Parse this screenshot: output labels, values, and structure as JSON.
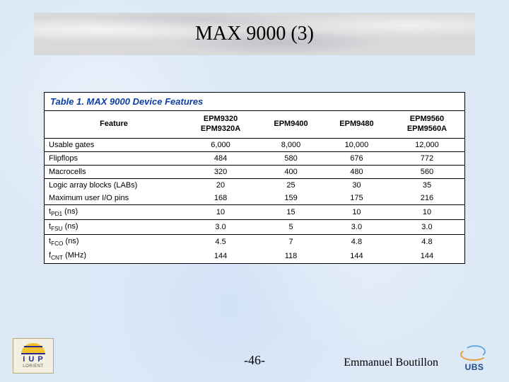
{
  "title": "MAX 9000 (3)",
  "table": {
    "caption": "Table 1. MAX 9000 Device Features",
    "columns": [
      "Feature",
      "EPM9320\nEPM9320A",
      "EPM9400",
      "EPM9480",
      "EPM9560\nEPM9560A"
    ],
    "rows": [
      {
        "label": "Usable gates",
        "vals": [
          "6,000",
          "8,000",
          "10,000",
          "12,000"
        ],
        "sep": true
      },
      {
        "label": "Flipflops",
        "vals": [
          "484",
          "580",
          "676",
          "772"
        ],
        "sep": true
      },
      {
        "label": "Macrocells",
        "vals": [
          "320",
          "400",
          "480",
          "560"
        ],
        "sep": true
      },
      {
        "label": "Logic array blocks (LABs)",
        "vals": [
          "20",
          "25",
          "30",
          "35"
        ],
        "sep": false
      },
      {
        "label": "Maximum user I/O pins",
        "vals": [
          "168",
          "159",
          "175",
          "216"
        ],
        "sep": true
      },
      {
        "label_html": "t<sub>PD1</sub> (ns)",
        "vals": [
          "10",
          "15",
          "10",
          "10"
        ],
        "sep": true
      },
      {
        "label_html": "t<sub>FSU</sub> (ns)",
        "vals": [
          "3.0",
          "5",
          "3.0",
          "3.0"
        ],
        "sep": true
      },
      {
        "label_html": "t<sub>FCO</sub> (ns)",
        "vals": [
          "4.5",
          "7",
          "4.8",
          "4.8"
        ],
        "sep": false
      },
      {
        "label_html": "f<sub>CNT</sub> (MHz)",
        "vals": [
          "144",
          "118",
          "144",
          "144"
        ],
        "sep": false
      }
    ]
  },
  "page_num": "-46-",
  "author": "Emmanuel Boutillon",
  "logo_left": {
    "line1": "I U P",
    "line2": "LORIENT"
  },
  "logo_right": {
    "text": "UBS"
  }
}
